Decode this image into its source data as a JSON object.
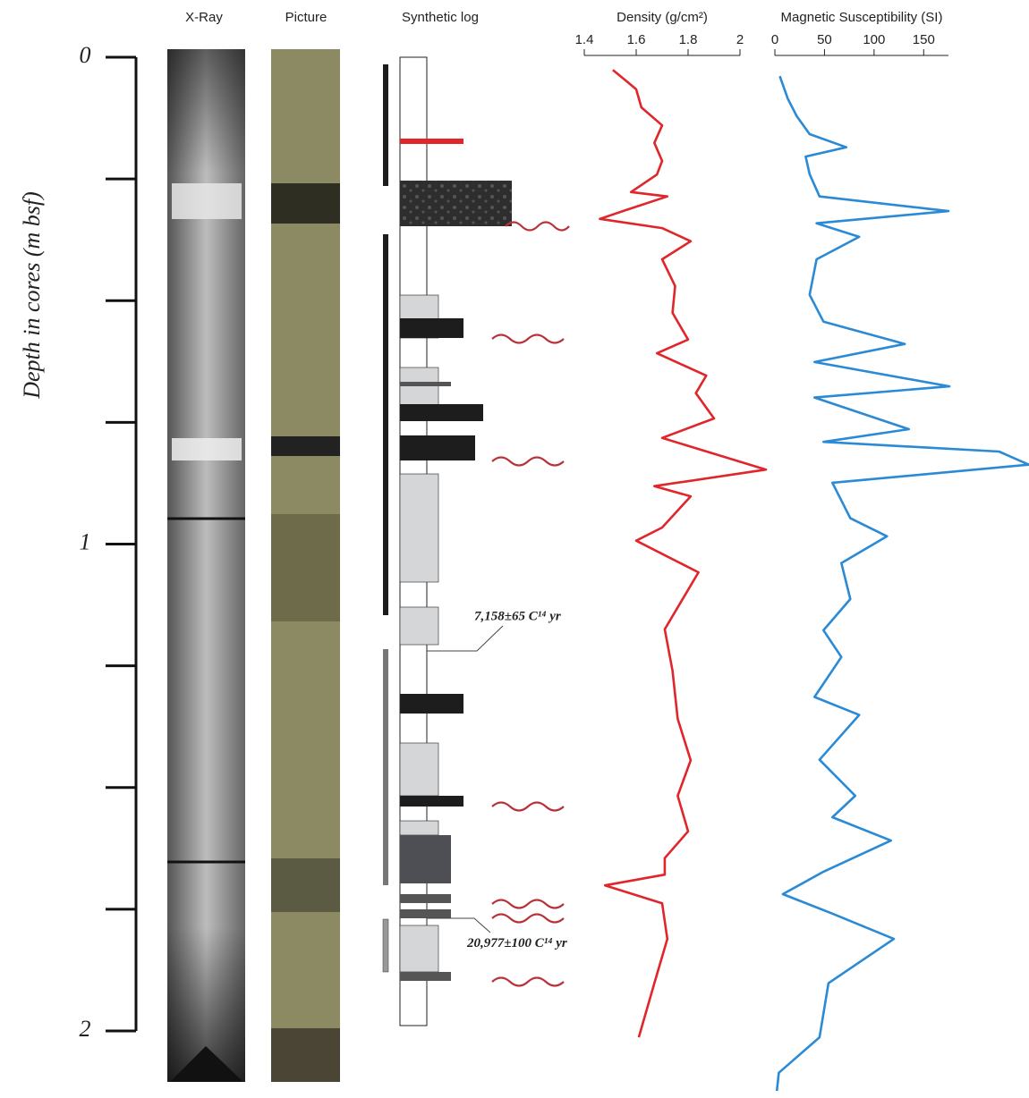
{
  "columns": [
    "X-Ray",
    "Picture",
    "Synthetic log"
  ],
  "depth_axis": {
    "label": "Depth in cores (m bsf)",
    "ylim": [
      0,
      2
    ],
    "yticks": [
      0,
      1,
      2
    ],
    "minor_ticks": [
      0.25,
      0.5,
      0.75,
      1.25,
      1.5,
      1.75
    ]
  },
  "annotations": [
    {
      "text": "7,158±65 C¹⁴ yr",
      "depth": 1.22
    },
    {
      "text": "20,977±100 C¹⁴ yr",
      "depth": 1.77
    }
  ],
  "chart_data": [
    {
      "type": "line",
      "title": "Density (g/cm²)",
      "color": "#e0262a",
      "xlim": [
        1.4,
        2
      ],
      "xticks": [
        1.4,
        1.6,
        1.8,
        2
      ],
      "depth": [
        0.026,
        0.048,
        0.066,
        0.103,
        0.14,
        0.176,
        0.213,
        0.241,
        0.277,
        0.286,
        0.314,
        0.332,
        0.351,
        0.378,
        0.415,
        0.47,
        0.525,
        0.58,
        0.608,
        0.654,
        0.69,
        0.742,
        0.782,
        0.847,
        0.881,
        0.902,
        0.966,
        0.993,
        1.058,
        1.175,
        1.26,
        1.359,
        1.444,
        1.517,
        1.59,
        1.645,
        1.679,
        1.701,
        1.738,
        1.811,
        1.902,
        2.013
      ],
      "values": [
        1.51,
        1.56,
        1.6,
        1.62,
        1.7,
        1.67,
        1.7,
        1.68,
        1.58,
        1.72,
        1.56,
        1.46,
        1.7,
        1.81,
        1.7,
        1.75,
        1.74,
        1.8,
        1.68,
        1.87,
        1.83,
        1.9,
        1.7,
        2.1,
        1.67,
        1.81,
        1.7,
        1.6,
        1.84,
        1.71,
        1.74,
        1.76,
        1.81,
        1.76,
        1.8,
        1.71,
        1.71,
        1.48,
        1.7,
        1.72,
        1.67,
        1.61
      ]
    },
    {
      "type": "line",
      "title": "Magnetic Susceptibility (SI)",
      "color": "#2a8ad6",
      "xlim": [
        0,
        175
      ],
      "xticks": [
        0,
        50,
        100,
        150
      ],
      "depth": [
        0.039,
        0.085,
        0.121,
        0.158,
        0.185,
        0.204,
        0.24,
        0.286,
        0.316,
        0.341,
        0.369,
        0.415,
        0.488,
        0.543,
        0.589,
        0.626,
        0.676,
        0.699,
        0.764,
        0.79,
        0.81,
        0.837,
        0.874,
        0.947,
        0.984,
        1.039,
        1.113,
        1.177,
        1.232,
        1.314,
        1.351,
        1.443,
        1.517,
        1.561,
        1.609,
        1.673,
        1.719,
        1.759,
        1.811,
        1.902,
        2.013,
        2.086,
        2.123
      ],
      "values": [
        5,
        13,
        22,
        35,
        72,
        31,
        35,
        45,
        175,
        42,
        85,
        42,
        35,
        49,
        131,
        40,
        176,
        40,
        135,
        49,
        226,
        256,
        58,
        76,
        113,
        67,
        76,
        49,
        67,
        40,
        85,
        45,
        81,
        58,
        117,
        49,
        8,
        58,
        120,
        54,
        45,
        4,
        2
      ]
    }
  ]
}
